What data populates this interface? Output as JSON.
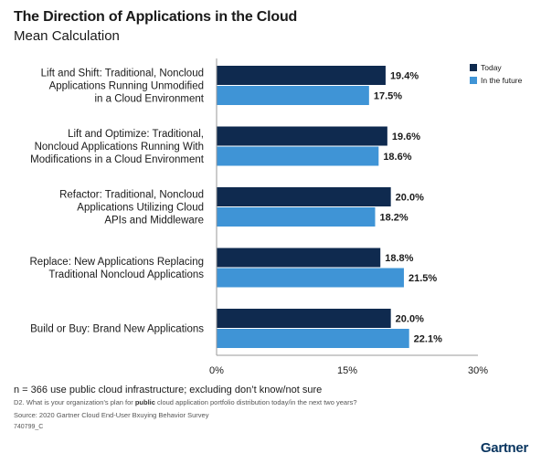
{
  "header": {
    "title": "The Direction of Applications in the Cloud",
    "subtitle": "Mean Calculation"
  },
  "chart_data": {
    "type": "bar",
    "orientation": "horizontal",
    "title": "The Direction of Applications in the Cloud",
    "subtitle": "Mean Calculation",
    "categories": [
      [
        "Lift and Shift: Traditional, Noncloud",
        "Applications Running Unmodified",
        "in a Cloud Environment"
      ],
      [
        "Lift and Optimize: Traditional,",
        "Noncloud Applications Running With",
        "Modifications in a Cloud Environment"
      ],
      [
        "Refactor: Traditional, Noncloud",
        "Applications Utilizing Cloud",
        "APIs and Middleware"
      ],
      [
        "Replace: New Applications Replacing",
        "Traditional Noncloud Applications"
      ],
      [
        "Build or Buy: Brand New Applications"
      ]
    ],
    "series": [
      {
        "name": "Today",
        "color": "#0f2a4f",
        "values": [
          19.4,
          19.6,
          20.0,
          18.8,
          20.0
        ],
        "labels": [
          "19.4%",
          "19.6%",
          "20.0%",
          "18.8%",
          "20.0%"
        ]
      },
      {
        "name": "In the future",
        "color": "#3f94d6",
        "values": [
          17.5,
          18.6,
          18.2,
          21.5,
          22.1
        ],
        "labels": [
          "17.5%",
          "18.6%",
          "18.2%",
          "21.5%",
          "22.1%"
        ]
      }
    ],
    "xlim": [
      0,
      30
    ],
    "ticks": [
      0,
      15,
      30
    ],
    "tick_labels": [
      "0%",
      "15%",
      "30%"
    ],
    "grid": false,
    "legend_position": "top-right"
  },
  "footer": {
    "note": "n = 366 use public cloud infrastructure; excluding don’t know/not sure",
    "question_pre": "D2. What is your organization’s plan for ",
    "question_bold": "public",
    "question_post": " cloud application portfolio distribution today/in the next two years?",
    "source": "Source: 2020 Gartner Cloud End-User Bxuying Behavior Survey",
    "code": "740799_C",
    "logo": "Gartner"
  }
}
